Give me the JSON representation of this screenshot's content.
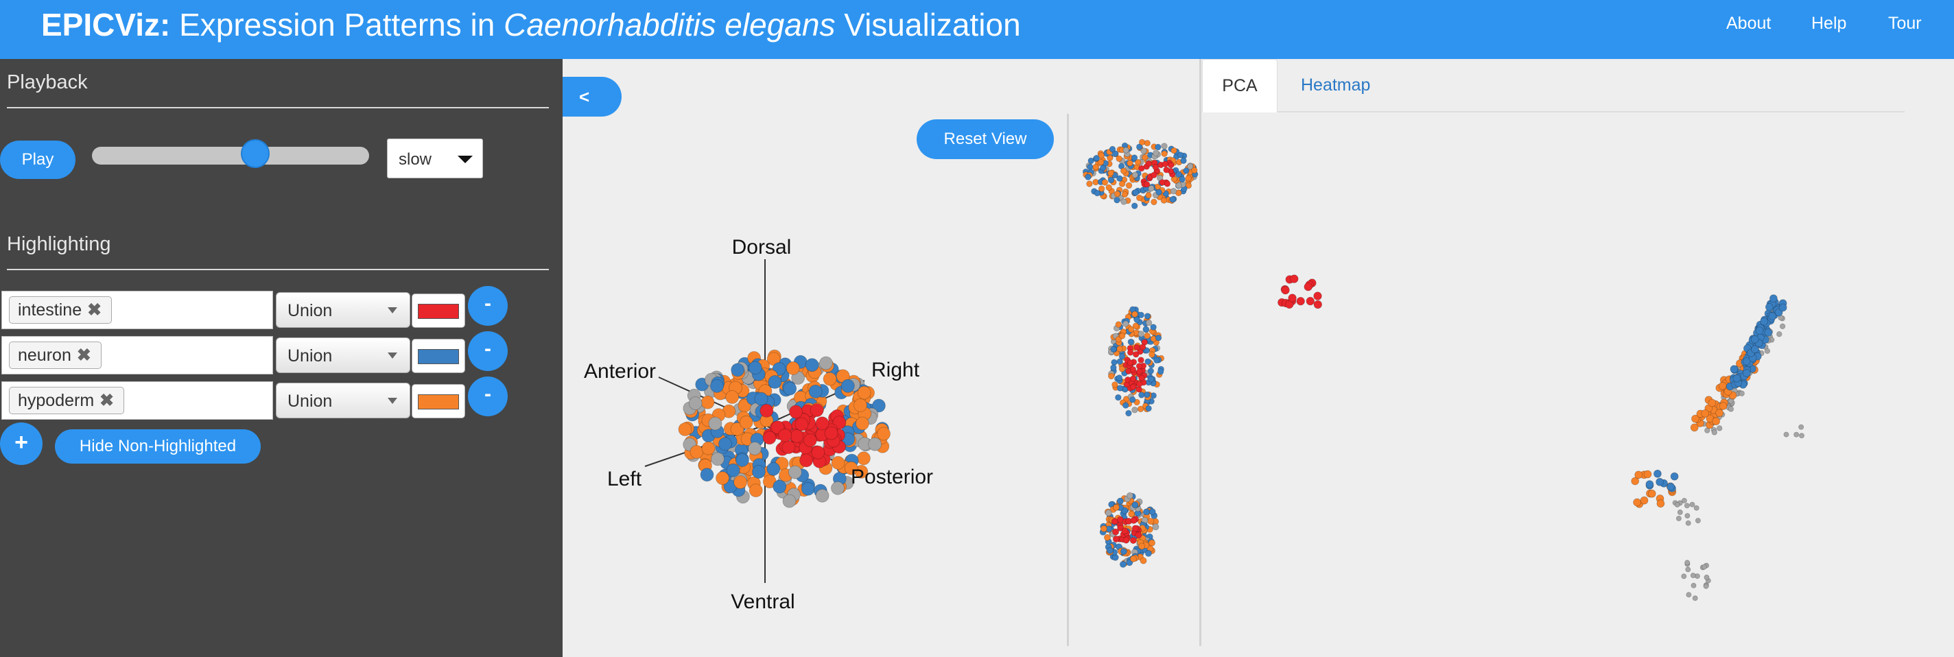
{
  "header": {
    "brand": "EPICViz:",
    "title_pre": "Expression Patterns in ",
    "title_species": "Caenorhabditis elegans",
    "title_post": " Visualization",
    "nav": [
      "About",
      "Help",
      "Tour"
    ]
  },
  "playback": {
    "title": "Playback",
    "play_label": "Play",
    "slider_value": 0.6,
    "speed": "slow"
  },
  "highlighting": {
    "title": "Highlighting",
    "rows": [
      {
        "tag": "intestine",
        "mode": "Union",
        "color": "#e8262b"
      },
      {
        "tag": "neuron",
        "mode": "Union",
        "color": "#3a7fc1"
      },
      {
        "tag": "hypoderm",
        "mode": "Union",
        "color": "#f5822a"
      }
    ],
    "remove_label": "-",
    "add_label": "+",
    "hide_label": "Hide Non-Highlighted",
    "remove_glyph": "✖"
  },
  "view": {
    "collapse_label": "<",
    "reset_label": "Reset View",
    "axes": {
      "dorsal": "Dorsal",
      "ventral": "Ventral",
      "anterior": "Anterior",
      "posterior": "Posterior",
      "left": "Left",
      "right": "Right"
    }
  },
  "tabs": {
    "pca": "PCA",
    "heatmap": "Heatmap"
  },
  "colors": {
    "accent": "#2e94f0",
    "sidebar": "#454545",
    "intestine": "#e8262b",
    "neuron": "#3a7fc1",
    "hypoderm": "#f5822a",
    "unhighlighted": "#a5a5a5"
  }
}
